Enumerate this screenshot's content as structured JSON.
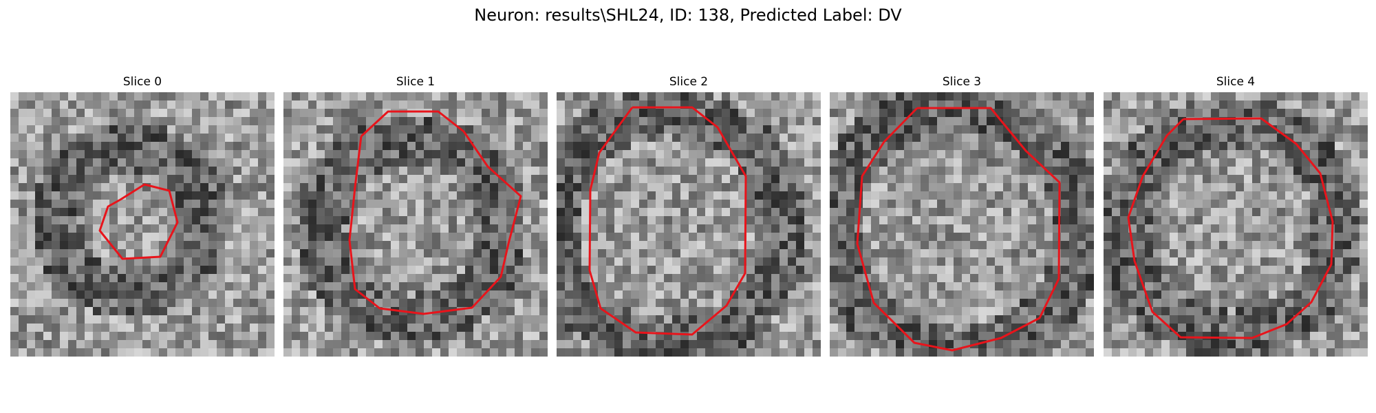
{
  "title": "Neuron: results\\SHL24, ID: 138, Predicted Label: DV",
  "panels": [
    {
      "title": "Slice 0"
    },
    {
      "title": "Slice 1"
    },
    {
      "title": "Slice 2"
    },
    {
      "title": "Slice 3"
    },
    {
      "title": "Slice 4"
    }
  ],
  "colors": {
    "contour": "#e8141b",
    "background": "#ffffff"
  }
}
